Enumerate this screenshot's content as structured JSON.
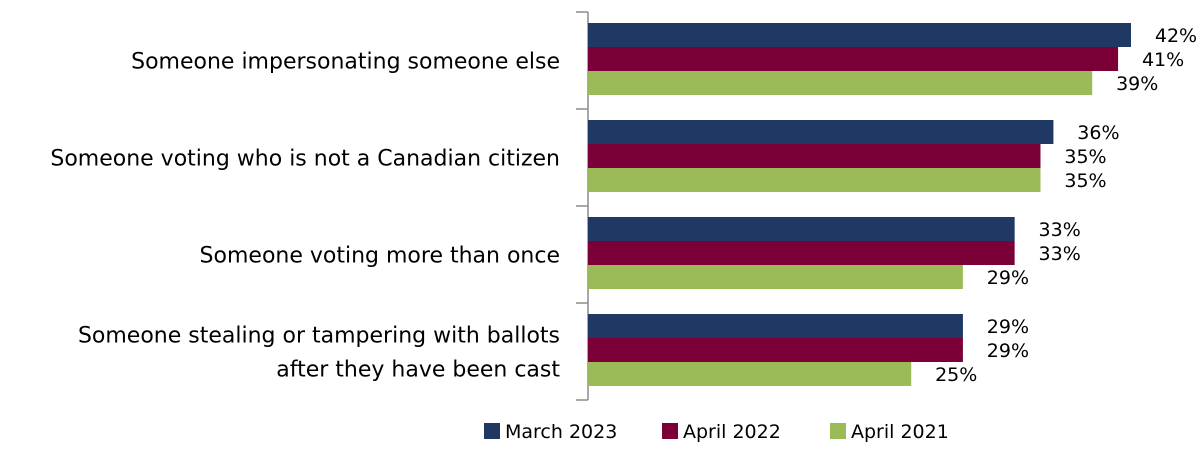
{
  "chart_data": {
    "type": "bar",
    "orientation": "horizontal",
    "categories": [
      [
        "Someone impersonating someone else"
      ],
      [
        "Someone voting who is not a Canadian citizen"
      ],
      [
        "Someone voting more than once"
      ],
      [
        "Someone stealing or tampering with ballots",
        "after they have been cast"
      ]
    ],
    "series": [
      {
        "name": "March 2023",
        "color": "#1F3864",
        "values": [
          42,
          36,
          33,
          29
        ]
      },
      {
        "name": "April 2022",
        "color": "#7B0037",
        "values": [
          41,
          35,
          33,
          29
        ]
      },
      {
        "name": "April 2021",
        "color": "#9BBB59",
        "values": [
          39,
          35,
          29,
          25
        ]
      }
    ],
    "value_suffix": "%",
    "xlim": [
      0,
      42
    ],
    "grid": false,
    "legend_position": "bottom"
  }
}
